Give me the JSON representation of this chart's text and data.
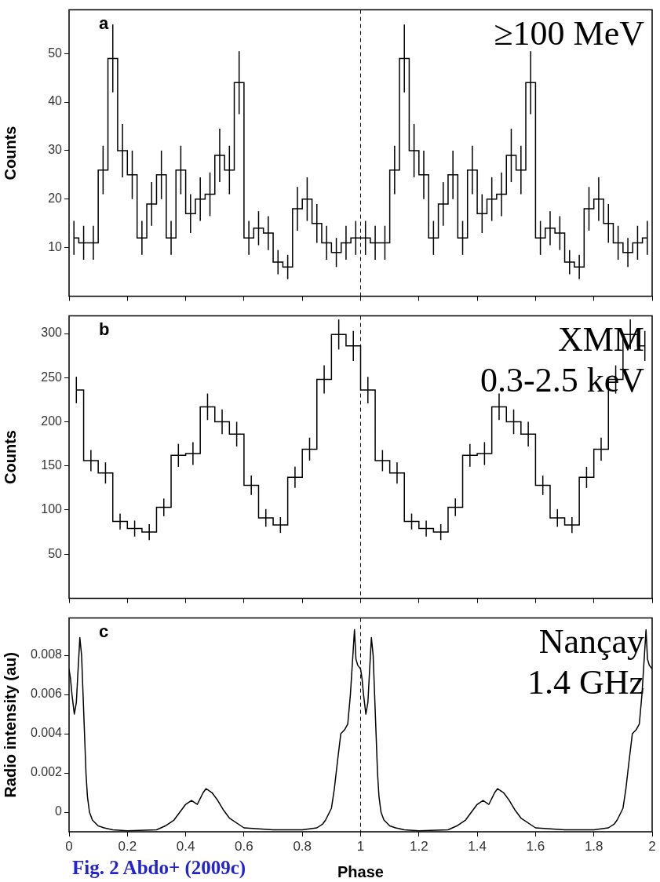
{
  "chart_data": [
    {
      "type": "step",
      "ylabel": "Counts",
      "annotations": [
        "a",
        "≥100 MeV"
      ],
      "x": [
        0.0167,
        0.05,
        0.0833,
        0.1167,
        0.15,
        0.1833,
        0.2167,
        0.25,
        0.2833,
        0.3167,
        0.35,
        0.3833,
        0.4167,
        0.45,
        0.4833,
        0.5167,
        0.55,
        0.5833,
        0.6167,
        0.65,
        0.6833,
        0.7167,
        0.75,
        0.7833,
        0.8167,
        0.85,
        0.8833,
        0.9167,
        0.95,
        0.9833,
        1.0167,
        1.05,
        1.0833,
        1.1167,
        1.15,
        1.1833,
        1.2167,
        1.25,
        1.2833,
        1.3167,
        1.35,
        1.3833,
        1.4167,
        1.45,
        1.4833,
        1.5167,
        1.55,
        1.5833,
        1.6167,
        1.65,
        1.6833,
        1.7167,
        1.75,
        1.7833,
        1.8167,
        1.85,
        1.8833,
        1.9167,
        1.95,
        1.9833
      ],
      "values": [
        12,
        11,
        11,
        26,
        49,
        30,
        25,
        12,
        19,
        25,
        12,
        26,
        17,
        20,
        21,
        29,
        26,
        44,
        12,
        14,
        13,
        7,
        6,
        18,
        20,
        15,
        11,
        9,
        11,
        12,
        12,
        11,
        11,
        26,
        49,
        30,
        25,
        12,
        19,
        25,
        12,
        26,
        17,
        20,
        21,
        29,
        26,
        44,
        12,
        14,
        13,
        7,
        6,
        18,
        20,
        15,
        11,
        9,
        11,
        12
      ],
      "errors": [
        3.5,
        3.5,
        3.5,
        5,
        7,
        5.5,
        5,
        3.5,
        4.5,
        5,
        3.5,
        5,
        4,
        4.5,
        4.5,
        5.5,
        5,
        6.5,
        3.5,
        3.5,
        3.5,
        2.5,
        2.5,
        4.5,
        4.5,
        4,
        3.5,
        3,
        3.5,
        3.5,
        3.5,
        3.5,
        3.5,
        5,
        7,
        5.5,
        5,
        3.5,
        4.5,
        5,
        3.5,
        5,
        4,
        4.5,
        4.5,
        5.5,
        5,
        6.5,
        3.5,
        3.5,
        3.5,
        2.5,
        2.5,
        4.5,
        4.5,
        4,
        3.5,
        3,
        3.5,
        3.5
      ],
      "color": "#000000",
      "xlim": [
        0,
        2
      ],
      "xticks": [
        0,
        0.2,
        0.4,
        0.6,
        0.8,
        1,
        1.2,
        1.4,
        1.6,
        1.8,
        2
      ],
      "ylim": [
        0,
        59
      ],
      "yticks": [
        10,
        20,
        30,
        40,
        50
      ],
      "ref_lines": [
        {
          "axis": "x",
          "value": 1,
          "color": "#000000",
          "line_style": "dashed"
        }
      ],
      "tick_labels": "y",
      "legend": false,
      "grid": false
    },
    {
      "type": "step",
      "ylabel": "Counts",
      "annotations": [
        "b",
        "XMM",
        "0.3-2.5 keV"
      ],
      "x": [
        0.025,
        0.075,
        0.125,
        0.175,
        0.225,
        0.275,
        0.325,
        0.375,
        0.425,
        0.475,
        0.525,
        0.575,
        0.625,
        0.675,
        0.725,
        0.775,
        0.825,
        0.875,
        0.925,
        0.975,
        1.025,
        1.075,
        1.125,
        1.175,
        1.225,
        1.275,
        1.325,
        1.375,
        1.425,
        1.475,
        1.525,
        1.575,
        1.625,
        1.675,
        1.725,
        1.775,
        1.825,
        1.875,
        1.925,
        1.975
      ],
      "values": [
        236,
        156,
        142,
        87,
        79,
        75,
        103,
        162,
        164,
        217,
        200,
        186,
        128,
        91,
        83,
        137,
        169,
        248,
        299,
        286,
        236,
        156,
        142,
        87,
        79,
        75,
        103,
        162,
        164,
        217,
        200,
        186,
        128,
        91,
        83,
        137,
        169,
        248,
        299,
        286
      ],
      "errors": [
        15,
        12,
        12,
        9,
        9,
        9,
        10,
        13,
        13,
        15,
        14,
        14,
        11,
        10,
        9,
        12,
        13,
        16,
        17,
        17,
        15,
        12,
        12,
        9,
        9,
        9,
        10,
        13,
        13,
        15,
        14,
        14,
        11,
        10,
        9,
        12,
        13,
        16,
        17,
        17
      ],
      "color": "#000000",
      "xlim": [
        0,
        2
      ],
      "xticks": [
        0,
        0.2,
        0.4,
        0.6,
        0.8,
        1,
        1.2,
        1.4,
        1.6,
        1.8,
        2
      ],
      "ylim": [
        0,
        320
      ],
      "yticks": [
        50,
        100,
        150,
        200,
        250,
        300
      ],
      "ref_lines": [
        {
          "axis": "x",
          "value": 1,
          "color": "#000000",
          "line_style": "dashed"
        }
      ],
      "tick_labels": "y",
      "legend": false,
      "grid": false
    },
    {
      "type": "line",
      "xlabel": "Phase",
      "ylabel": "Radio intensity (au)",
      "annotations": [
        "c",
        "Nançay",
        "1.4 GHz",
        "Fig. 2 Abdo+ (2009c)"
      ],
      "x": [
        0,
        0.005,
        0.01,
        0.018,
        0.025,
        0.03,
        0.037,
        0.043,
        0.048,
        0.053,
        0.058,
        0.063,
        0.07,
        0.08,
        0.1,
        0.12,
        0.15,
        0.2,
        0.3,
        0.33,
        0.36,
        0.38,
        0.4,
        0.42,
        0.44,
        0.46,
        0.47,
        0.49,
        0.51,
        0.53,
        0.55,
        0.6,
        0.7,
        0.8,
        0.85,
        0.87,
        0.88,
        0.9,
        0.91,
        0.92,
        0.932,
        0.945,
        0.956,
        0.965,
        0.979,
        0.984,
        0.99,
        1,
        1.005,
        1.01,
        1.018,
        1.025,
        1.03,
        1.037,
        1.043,
        1.048,
        1.053,
        1.058,
        1.063,
        1.07,
        1.08,
        1.1,
        1.12,
        1.15,
        1.2,
        1.3,
        1.33,
        1.36,
        1.38,
        1.4,
        1.42,
        1.44,
        1.46,
        1.47,
        1.49,
        1.51,
        1.53,
        1.55,
        1.6,
        1.7,
        1.8,
        1.85,
        1.87,
        1.88,
        1.9,
        1.91,
        1.92,
        1.932,
        1.945,
        1.956,
        1.965,
        1.979,
        1.984,
        1.99,
        2
      ],
      "series": [
        {
          "color": "#000000",
          "values": [
            0.0073,
            0.0068,
            0.006,
            0.005,
            0.0056,
            0.007,
            0.0089,
            0.008,
            0.006,
            0.004,
            0.002,
            0.0008,
            0,
            -0.0004,
            -0.0007,
            -0.0008,
            -0.0009,
            -0.00095,
            -0.0009,
            -0.0007,
            -0.0004,
            0,
            0.0004,
            0.0006,
            0.0004,
            0.001,
            0.0012,
            0.001,
            0.0006,
            0.0001,
            -0.0003,
            -0.0008,
            -0.0009,
            -0.0009,
            -0.0008,
            -0.0006,
            -0.0004,
            0.0002,
            0.0012,
            0.0025,
            0.004,
            0.0042,
            0.0045,
            0.006,
            0.0093,
            0.0078,
            0.0075,
            0.0073,
            0.0068,
            0.006,
            0.005,
            0.0056,
            0.007,
            0.0089,
            0.008,
            0.006,
            0.004,
            0.002,
            0.0008,
            0,
            -0.0004,
            -0.0007,
            -0.0008,
            -0.0009,
            -0.00095,
            -0.0009,
            -0.0007,
            -0.0004,
            0,
            0.0004,
            0.0006,
            0.0004,
            0.001,
            0.0012,
            0.001,
            0.0006,
            0.0001,
            -0.0003,
            -0.0008,
            -0.0009,
            -0.0009,
            -0.0008,
            -0.0006,
            -0.0004,
            0.0002,
            0.0012,
            0.0025,
            0.004,
            0.0042,
            0.0045,
            0.006,
            0.0093,
            0.0078,
            0.0075,
            0.0073
          ]
        }
      ],
      "xlim": [
        0,
        2
      ],
      "xticks": [
        0,
        0.2,
        0.4,
        0.6,
        0.8,
        1,
        1.2,
        1.4,
        1.6,
        1.8,
        2
      ],
      "ylim": [
        -0.001,
        0.0099
      ],
      "yticks": [
        0,
        0.002,
        0.004,
        0.006,
        0.008
      ],
      "ref_lines": [
        {
          "axis": "x",
          "value": 1,
          "color": "#000000",
          "line_style": "dashed"
        }
      ],
      "marker": "none",
      "line_style": "solid",
      "legend": false,
      "grid": false
    }
  ]
}
